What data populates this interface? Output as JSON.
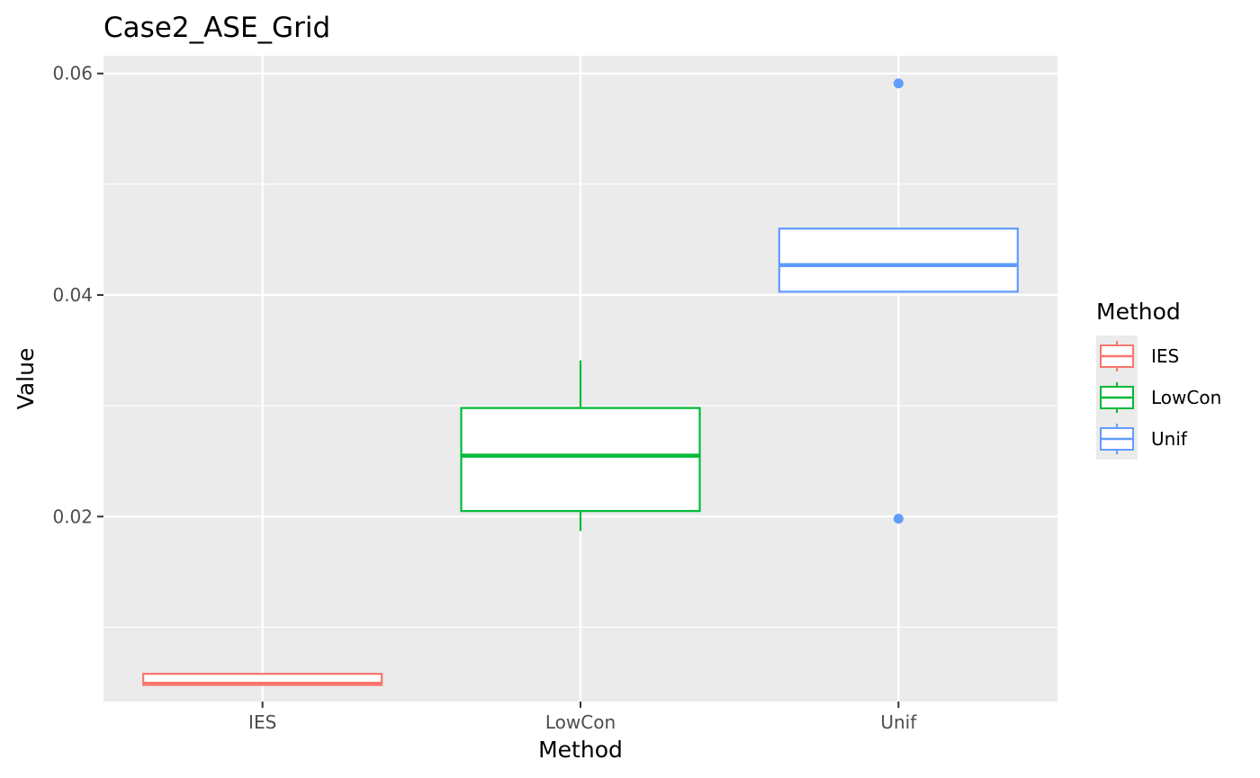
{
  "chart_data": {
    "type": "boxplot",
    "title": "Case2_ASE_Grid",
    "xlabel": "Method",
    "ylabel": "Value",
    "categories": [
      "IES",
      "LowCon",
      "Unif"
    ],
    "ylim": [
      0.0033,
      0.0616
    ],
    "yticks": [
      0.02,
      0.04,
      0.06
    ],
    "ytick_labels": [
      "0.02",
      "0.04",
      "0.06"
    ],
    "grid": true,
    "legend": {
      "title": "Method",
      "position": "right",
      "entries": [
        "IES",
        "LowCon",
        "Unif"
      ]
    },
    "series": [
      {
        "name": "IES",
        "color": "#F8766D",
        "q1": 0.0048,
        "median": 0.0049,
        "q3": 0.0058,
        "whisker_low": 0.0048,
        "whisker_high": 0.0058,
        "outliers": []
      },
      {
        "name": "LowCon",
        "color": "#00BA38",
        "q1": 0.0205,
        "median": 0.0255,
        "q3": 0.0298,
        "whisker_low": 0.0187,
        "whisker_high": 0.0341,
        "outliers": []
      },
      {
        "name": "Unif",
        "color": "#619CFF",
        "q1": 0.0403,
        "median": 0.0427,
        "q3": 0.046,
        "whisker_low": 0.0403,
        "whisker_high": 0.046,
        "outliers": [
          0.0591,
          0.0198
        ]
      }
    ]
  }
}
